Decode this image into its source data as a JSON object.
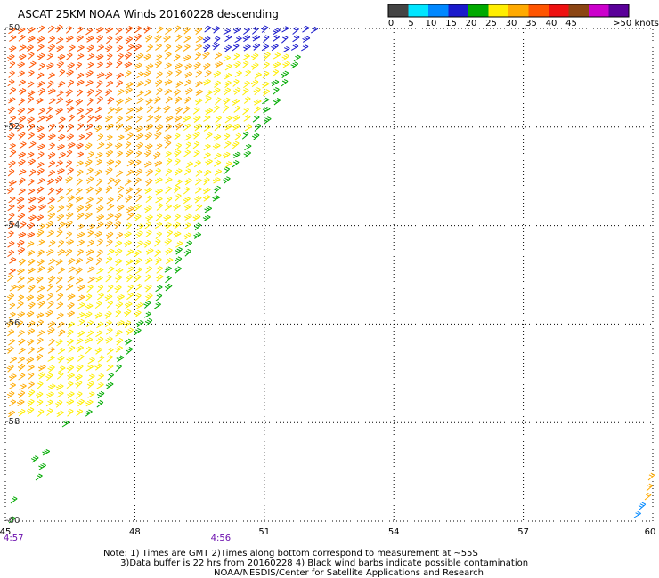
{
  "title": "ASCAT 25KM NOAA Winds 20160228 descending",
  "legend": {
    "unit_label": ">50 knots",
    "bins": [
      {
        "label": "0",
        "color": "#444444"
      },
      {
        "label": "5",
        "color": "#00e5ff"
      },
      {
        "label": "10",
        "color": "#0088ff"
      },
      {
        "label": "15",
        "color": "#1a1acc"
      },
      {
        "label": "20",
        "color": "#00aa00"
      },
      {
        "label": "25",
        "color": "#ffee00"
      },
      {
        "label": "30",
        "color": "#ffaa00"
      },
      {
        "label": "35",
        "color": "#ff5500"
      },
      {
        "label": "40",
        "color": "#ee1111"
      },
      {
        "label": "45",
        "color": "#8b4513"
      },
      {
        "label": "",
        "color": "#cc00cc"
      },
      {
        "label": "",
        "color": "#5a0099"
      }
    ]
  },
  "map": {
    "lon_ticks": [
      "45",
      "48",
      "51",
      "54",
      "57",
      "60"
    ],
    "lat_ticks": [
      "-50",
      "-52",
      "-54",
      "-56",
      "-58",
      "-60"
    ],
    "time_labels": [
      {
        "text": "4:57",
        "lon": 45
      },
      {
        "text": "4:56",
        "lon": 49.8
      }
    ]
  },
  "notes": {
    "line1": "Note: 1) Times are GMT 2)Times along bottom correspond to measurement at ~55S",
    "line2": "      3)Data buffer is 22 hrs from 20160228 4) Black wind barbs indicate possible contamination",
    "line3": "                                       NOAA/NESDIS/Center for Satellite Applications and Research"
  }
}
